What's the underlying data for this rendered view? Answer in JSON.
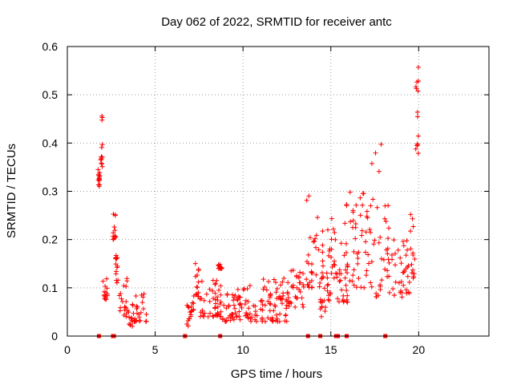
{
  "chart_data": {
    "type": "scatter",
    "title": "Day 062 of 2022, SRMTID for receiver antc",
    "xlabel": "GPS time / hours",
    "ylabel": "SRMTID / TECUs",
    "xlim": [
      0,
      24
    ],
    "ylim": [
      0,
      0.6
    ],
    "xticks": [
      "0",
      "5",
      "10",
      "15",
      "20"
    ],
    "yticks": [
      "0",
      "0.1",
      "0.2",
      "0.3",
      "0.4",
      "0.5",
      "0.6"
    ],
    "grid": true,
    "marker": "+",
    "color": "#ff0000",
    "segments": [
      {
        "x": [
          1.75,
          1.85
        ],
        "y": [
          0.31,
          0.35
        ]
      },
      {
        "x": [
          1.9,
          2.0
        ],
        "y": [
          0.35,
          0.47
        ]
      },
      {
        "x": [
          2.0,
          2.3
        ],
        "y": [
          0.07,
          0.13
        ]
      },
      {
        "x": [
          2.6,
          2.75
        ],
        "y": [
          0.2,
          0.26
        ]
      },
      {
        "x": [
          2.75,
          2.9
        ],
        "y": [
          0.11,
          0.17
        ]
      },
      {
        "x": [
          2.9,
          3.4
        ],
        "y": [
          0.04,
          0.12
        ]
      },
      {
        "x": [
          3.4,
          3.8
        ],
        "y": [
          0.02,
          0.07
        ]
      },
      {
        "x": [
          3.8,
          4.5
        ],
        "y": [
          0.03,
          0.09
        ]
      },
      {
        "x": [
          6.7,
          7.2
        ],
        "y": [
          0.02,
          0.07
        ]
      },
      {
        "x": [
          7.2,
          7.5
        ],
        "y": [
          0.08,
          0.16
        ]
      },
      {
        "x": [
          7.5,
          8.8
        ],
        "y": [
          0.04,
          0.12
        ]
      },
      {
        "x": [
          8.6,
          8.8
        ],
        "y": [
          0.14,
          0.15
        ]
      },
      {
        "x": [
          8.8,
          10.0
        ],
        "y": [
          0.03,
          0.1
        ]
      },
      {
        "x": [
          10.0,
          12.5
        ],
        "y": [
          0.03,
          0.12
        ]
      },
      {
        "x": [
          12.5,
          13.5
        ],
        "y": [
          0.06,
          0.14
        ]
      },
      {
        "x": [
          13.6,
          14.4
        ],
        "y": [
          0.1,
          0.3
        ]
      },
      {
        "x": [
          14.4,
          15.0
        ],
        "y": [
          0.04,
          0.13
        ]
      },
      {
        "x": [
          14.5,
          15.3
        ],
        "y": [
          0.12,
          0.25
        ]
      },
      {
        "x": [
          15.3,
          16.0
        ],
        "y": [
          0.07,
          0.2
        ]
      },
      {
        "x": [
          15.8,
          16.5
        ],
        "y": [
          0.1,
          0.32
        ]
      },
      {
        "x": [
          16.5,
          17.3
        ],
        "y": [
          0.1,
          0.3
        ]
      },
      {
        "x": [
          17.3,
          17.9
        ],
        "y": [
          0.08,
          0.41
        ]
      },
      {
        "x": [
          18.0,
          18.6
        ],
        "y": [
          0.09,
          0.3
        ]
      },
      {
        "x": [
          18.6,
          19.5
        ],
        "y": [
          0.08,
          0.2
        ]
      },
      {
        "x": [
          19.5,
          19.8
        ],
        "y": [
          0.12,
          0.26
        ]
      },
      {
        "x": [
          19.8,
          20.0
        ],
        "y": [
          0.37,
          0.57
        ]
      }
    ],
    "baseline_markers_x": [
      1.8,
      2.6,
      2.65,
      6.7,
      8.7,
      13.7,
      14.4,
      15.3,
      15.4,
      15.9,
      18.1
    ]
  }
}
